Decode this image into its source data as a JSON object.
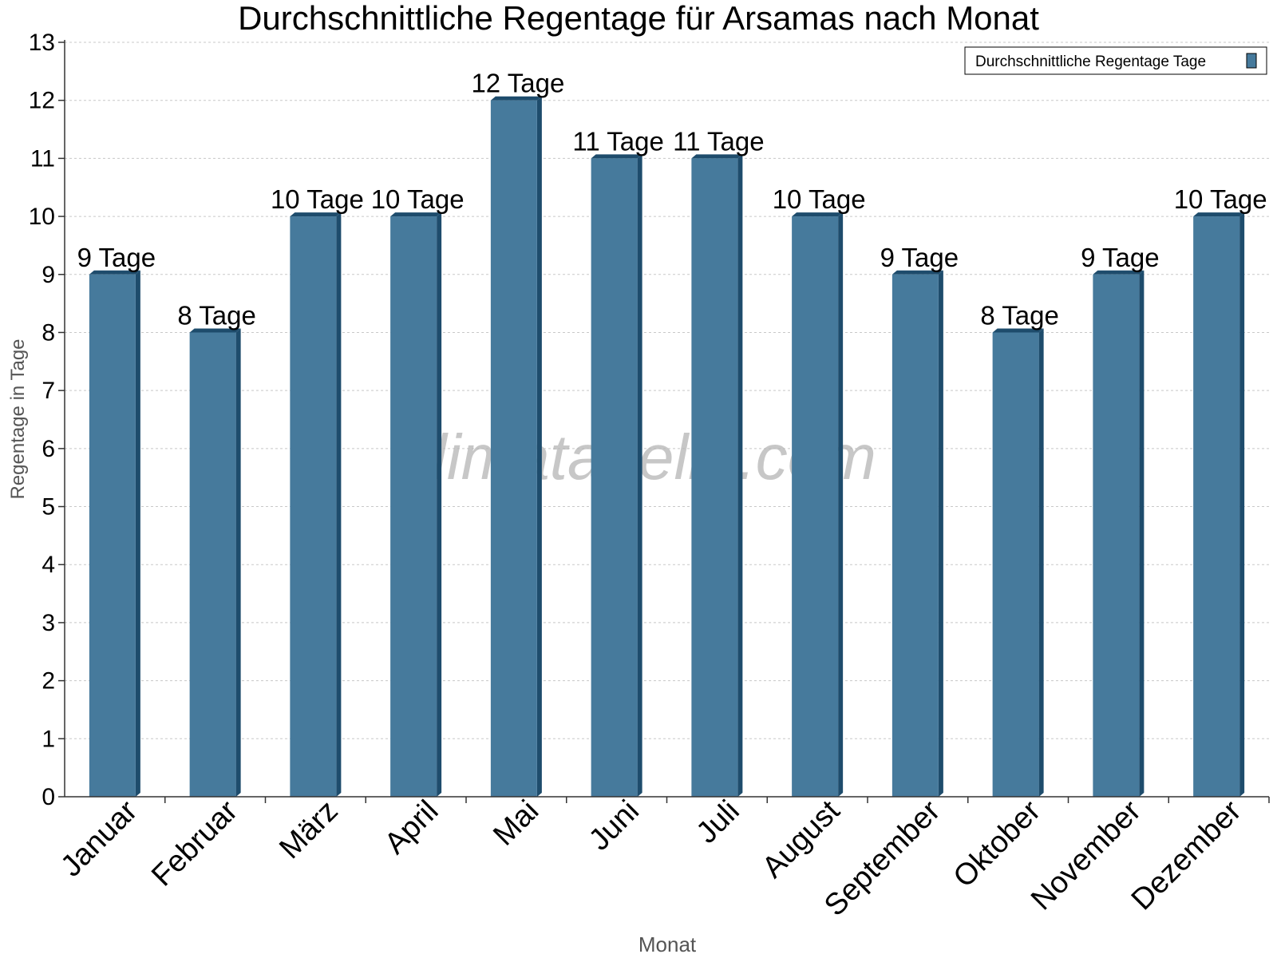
{
  "chart_data": {
    "type": "bar",
    "title": "Durchschnittliche Regentage für Arsamas nach Monat",
    "xlabel": "Monat",
    "ylabel": "Regentage in Tage",
    "categories": [
      "Januar",
      "Februar",
      "März",
      "April",
      "Mai",
      "Juni",
      "Juli",
      "August",
      "September",
      "Oktober",
      "November",
      "Dezember"
    ],
    "series": [
      {
        "name": "Durchschnittliche Regentage Tage",
        "values": [
          9,
          8,
          10,
          10,
          12,
          11,
          11,
          10,
          9,
          8,
          9,
          10
        ],
        "labels": [
          "9 Tage",
          "8 Tage",
          "10 Tage",
          "10 Tage",
          "12 Tage",
          "11 Tage",
          "11 Tage",
          "10 Tage",
          "9 Tage",
          "8 Tage",
          "9 Tage",
          "10 Tage"
        ]
      }
    ],
    "ylim": [
      0,
      13
    ],
    "yticks": [
      "0",
      "1",
      "2",
      "3",
      "4",
      "5",
      "6",
      "7",
      "8",
      "9",
      "10",
      "11",
      "12",
      "13"
    ],
    "grid": true,
    "legend_position": "top-right",
    "watermark": "klimatabelle.com",
    "colors": {
      "bar_front": "#467a9c",
      "bar_side": "#1e4c6c",
      "bar_top": "#1e4c6c",
      "grid": "#c8c8c8",
      "axis": "#333333",
      "title": "#000000",
      "axis_label": "#555555",
      "watermark": "#b4b4b4"
    }
  }
}
